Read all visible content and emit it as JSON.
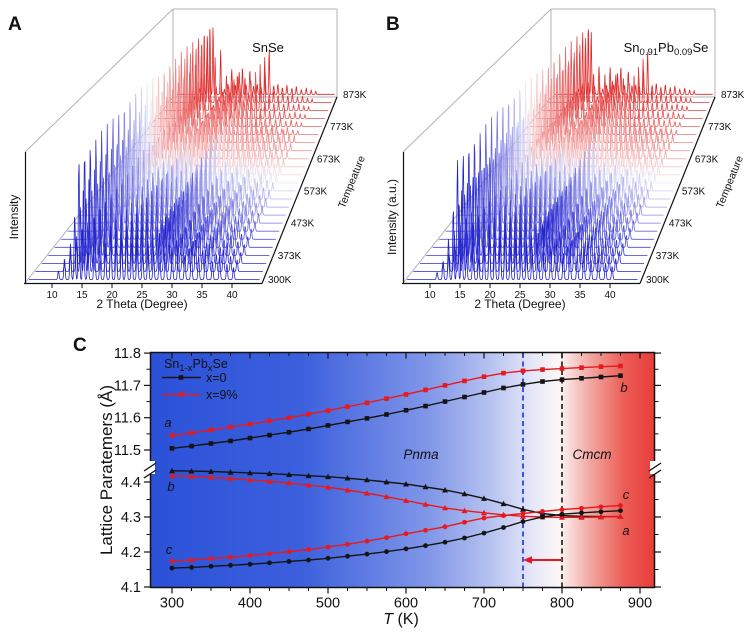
{
  "figure": {
    "panel_a_label": "A",
    "panel_b_label": "B",
    "panel_c_label": "C"
  },
  "panelA": {
    "title": "SnSe",
    "ylabel": "Intensity",
    "xlabel": "2 Theta (Degree)",
    "depth_label": "Tempeature",
    "temp_labels": [
      "300K",
      "373K",
      "473K",
      "573K",
      "673K",
      "773K",
      "873K"
    ]
  },
  "panelB": {
    "title_parts": {
      "base1": "Sn",
      "sub1": "0.91",
      "base2": "Pb",
      "sub2": "0.09",
      "base3": "Se"
    },
    "ylabel": "Intensity (a.u.)",
    "xlabel": "2 Theta (Degree)",
    "depth_label": "Tempeature",
    "temp_labels": [
      "300K",
      "373K",
      "473K",
      "573K",
      "673K",
      "773K",
      "873K"
    ]
  },
  "panelC": {
    "ylabel": "Lattice Paratemers (Å)",
    "xlabel_T": "T",
    "xlabel_unit": " (K)",
    "legend": {
      "title_parts": {
        "base1": "Sn",
        "sub1": "1-x",
        "base2": "Pb",
        "sub2": "x",
        "base3": "Se"
      },
      "item1": "x=0",
      "item2": "x=9%"
    },
    "phase_pnma": "Pnma",
    "phase_cmcm": "Cmcm",
    "label_a_left": "a",
    "label_b_left": "b",
    "label_c_left": "c",
    "label_b_right": "b",
    "label_c_right": "c",
    "label_a_right": "a"
  },
  "chart_data": [
    {
      "type": "line",
      "subtype": "waterfall-xrd",
      "panel": "A",
      "title": "SnSe",
      "xlabel": "2 Theta (Degree)",
      "ylabel": "Intensity",
      "depth_axis_label": "Tempeature",
      "x_ticks": [
        10,
        15,
        20,
        25,
        30,
        35,
        40
      ],
      "x_range": [
        6.3,
        44.7
      ],
      "temperatures_K": [
        300,
        325,
        350,
        375,
        400,
        425,
        450,
        475,
        500,
        525,
        550,
        575,
        600,
        625,
        650,
        675,
        700,
        725,
        750,
        775,
        800,
        825,
        850,
        875
      ],
      "temp_axis_labels": [
        "300K",
        "373K",
        "473K",
        "573K",
        "673K",
        "773K",
        "873K"
      ],
      "colormap": "blue(300K) through white to red(873K)",
      "peaks_2theta_relint": [
        [
          11.2,
          0.07
        ],
        [
          12.2,
          0.18
        ],
        [
          13.2,
          0.3
        ],
        [
          13.9,
          0.55
        ],
        [
          14.6,
          1.0
        ],
        [
          15.35,
          0.8
        ],
        [
          16.1,
          0.24
        ],
        [
          17.2,
          0.52
        ],
        [
          18.1,
          0.16
        ],
        [
          19.0,
          0.32
        ],
        [
          19.9,
          0.44
        ],
        [
          20.8,
          0.3
        ],
        [
          21.7,
          0.38
        ],
        [
          22.5,
          0.46
        ],
        [
          23.4,
          0.3
        ],
        [
          24.3,
          0.42
        ],
        [
          25.2,
          0.26
        ],
        [
          26.1,
          0.32
        ],
        [
          27.0,
          0.25
        ],
        [
          28.0,
          0.4
        ],
        [
          29.0,
          0.52
        ],
        [
          30.1,
          0.27
        ],
        [
          31.1,
          0.33
        ],
        [
          32.2,
          0.21
        ],
        [
          33.3,
          0.29
        ],
        [
          34.5,
          0.19
        ],
        [
          35.6,
          0.25
        ],
        [
          36.8,
          0.15
        ],
        [
          38.0,
          0.19
        ],
        [
          39.2,
          0.13
        ],
        [
          40.3,
          0.1
        ]
      ]
    },
    {
      "type": "line",
      "subtype": "waterfall-xrd",
      "panel": "B",
      "title": "Sn0.91Pb0.09Se",
      "xlabel": "2 Theta (Degree)",
      "ylabel": "Intensity (a.u.)",
      "depth_axis_label": "Tempeature",
      "x_ticks": [
        10,
        15,
        20,
        25,
        30,
        35,
        40
      ],
      "x_range": [
        6.3,
        44.7
      ],
      "temperatures_K": [
        300,
        325,
        350,
        375,
        400,
        425,
        450,
        475,
        500,
        525,
        550,
        575,
        600,
        625,
        650,
        675,
        700,
        725,
        750,
        775,
        800,
        825,
        850,
        875
      ],
      "temp_axis_labels": [
        "300K",
        "373K",
        "473K",
        "573K",
        "673K",
        "773K",
        "873K"
      ],
      "colormap": "blue(300K) through white to red(873K)",
      "peaks_2theta_relint": [
        [
          11.3,
          0.06
        ],
        [
          12.3,
          0.16
        ],
        [
          13.2,
          0.34
        ],
        [
          14.0,
          0.6
        ],
        [
          14.7,
          1.0
        ],
        [
          15.4,
          0.74
        ],
        [
          16.2,
          0.26
        ],
        [
          17.3,
          0.48
        ],
        [
          18.2,
          0.18
        ],
        [
          19.1,
          0.3
        ],
        [
          20.0,
          0.46
        ],
        [
          20.9,
          0.32
        ],
        [
          21.8,
          0.36
        ],
        [
          22.6,
          0.48
        ],
        [
          23.5,
          0.28
        ],
        [
          24.4,
          0.4
        ],
        [
          25.3,
          0.28
        ],
        [
          26.2,
          0.3
        ],
        [
          27.1,
          0.26
        ],
        [
          28.1,
          0.42
        ],
        [
          29.1,
          0.5
        ],
        [
          30.2,
          0.28
        ],
        [
          31.2,
          0.34
        ],
        [
          32.3,
          0.22
        ],
        [
          33.4,
          0.3
        ],
        [
          34.6,
          0.2
        ],
        [
          35.7,
          0.26
        ],
        [
          36.9,
          0.16
        ],
        [
          38.1,
          0.2
        ],
        [
          39.3,
          0.14
        ],
        [
          40.4,
          0.11
        ]
      ]
    },
    {
      "type": "line",
      "panel": "C",
      "title": "Lattice parameters vs temperature",
      "xlabel": "T (K)",
      "ylabel": "Lattice Paratemers (Å)",
      "x_ticks": [
        300,
        400,
        500,
        600,
        700,
        800,
        900
      ],
      "xlim": [
        272,
        919
      ],
      "y_ticks_upper": [
        11.5,
        11.6,
        11.7,
        11.8
      ],
      "y_ticks_lower": [
        4.1,
        4.2,
        4.3,
        4.4
      ],
      "axis_break_between": [
        4.45,
        11.45
      ],
      "x": [
        300,
        325,
        350,
        375,
        400,
        425,
        450,
        475,
        500,
        525,
        550,
        575,
        600,
        625,
        650,
        675,
        700,
        725,
        750,
        775,
        800,
        825,
        850,
        875
      ],
      "series": [
        {
          "name": "a, x=0",
          "marker": "square",
          "color": "#141414",
          "values": [
            11.505,
            11.512,
            11.52,
            11.528,
            11.537,
            11.546,
            11.555,
            11.565,
            11.576,
            11.587,
            11.598,
            11.61,
            11.623,
            11.636,
            11.65,
            11.664,
            11.678,
            11.692,
            11.703,
            11.712,
            11.718,
            11.722,
            11.726,
            11.73
          ]
        },
        {
          "name": "a, x=9%",
          "marker": "square",
          "color": "#e8191d",
          "values": [
            11.545,
            11.553,
            11.562,
            11.571,
            11.58,
            11.59,
            11.6,
            11.611,
            11.622,
            11.634,
            11.646,
            11.659,
            11.672,
            11.686,
            11.7,
            11.714,
            11.727,
            11.738,
            11.745,
            11.749,
            11.752,
            11.755,
            11.758,
            11.76
          ]
        },
        {
          "name": "b, x=0",
          "marker": "triangle",
          "color": "#141414",
          "values": [
            4.432,
            4.431,
            4.43,
            4.428,
            4.426,
            4.424,
            4.421,
            4.418,
            4.415,
            4.411,
            4.406,
            4.4,
            4.394,
            4.386,
            4.377,
            4.366,
            4.353,
            4.338,
            4.322,
            4.31,
            4.304,
            4.302,
            4.301,
            4.301
          ]
        },
        {
          "name": "b, x=9%",
          "marker": "triangle",
          "color": "#e8191d",
          "values": [
            4.418,
            4.416,
            4.413,
            4.41,
            4.406,
            4.402,
            4.397,
            4.391,
            4.385,
            4.377,
            4.368,
            4.358,
            4.347,
            4.336,
            4.326,
            4.318,
            4.312,
            4.306,
            4.302,
            4.3,
            4.299,
            4.299,
            4.3,
            4.301
          ]
        },
        {
          "name": "c, x=0",
          "marker": "circle",
          "color": "#141414",
          "values": [
            4.154,
            4.156,
            4.159,
            4.162,
            4.165,
            4.169,
            4.173,
            4.177,
            4.182,
            4.188,
            4.194,
            4.201,
            4.209,
            4.218,
            4.228,
            4.24,
            4.254,
            4.27,
            4.287,
            4.3,
            4.308,
            4.312,
            4.315,
            4.318
          ]
        },
        {
          "name": "c, x=9%",
          "marker": "circle",
          "color": "#e8191d",
          "values": [
            4.174,
            4.177,
            4.181,
            4.185,
            4.19,
            4.195,
            4.201,
            4.207,
            4.214,
            4.222,
            4.231,
            4.241,
            4.252,
            4.262,
            4.272,
            4.285,
            4.297,
            4.304,
            4.31,
            4.316,
            4.321,
            4.325,
            4.329,
            4.333
          ]
        }
      ],
      "dashed_lines": [
        {
          "x_K": 750,
          "color": "#2030dd",
          "meaning": "transition x=9%"
        },
        {
          "x_K": 800,
          "color": "#1a1a1a",
          "meaning": "transition x=0"
        }
      ],
      "arrow": {
        "from_K": 800,
        "to_K": 750,
        "at_value": 4.18,
        "color": "#e8191d"
      },
      "phase_labels": [
        {
          "text": "Pnma",
          "T": 617
        },
        {
          "text": "Cmcm",
          "T": 838
        }
      ],
      "legend": {
        "title": "Sn1-xPbxSe",
        "items": [
          "x=0",
          "x=9%"
        ],
        "position": "top-left"
      }
    }
  ],
  "colors": {
    "waterfall_cold": "#2121cd",
    "waterfall_hot": "#e02424",
    "series_black": "#141414",
    "series_red": "#e8191d",
    "dash_blue": "#2030dd",
    "dash_black": "#1a1a1a",
    "frame_gray": "#b3b3b3",
    "axis_black": "#111111",
    "bg_gradient": [
      [
        0,
        "#2b51d8"
      ],
      [
        0.3,
        "#3c60dd"
      ],
      [
        0.55,
        "#8096e8"
      ],
      [
        0.68,
        "#b9c4f1"
      ],
      [
        0.76,
        "#e6e8f8"
      ],
      [
        0.81,
        "#fdf6f5"
      ],
      [
        0.87,
        "#f2a9a4"
      ],
      [
        0.94,
        "#ec5b55"
      ],
      [
        1,
        "#e83d39"
      ]
    ]
  }
}
